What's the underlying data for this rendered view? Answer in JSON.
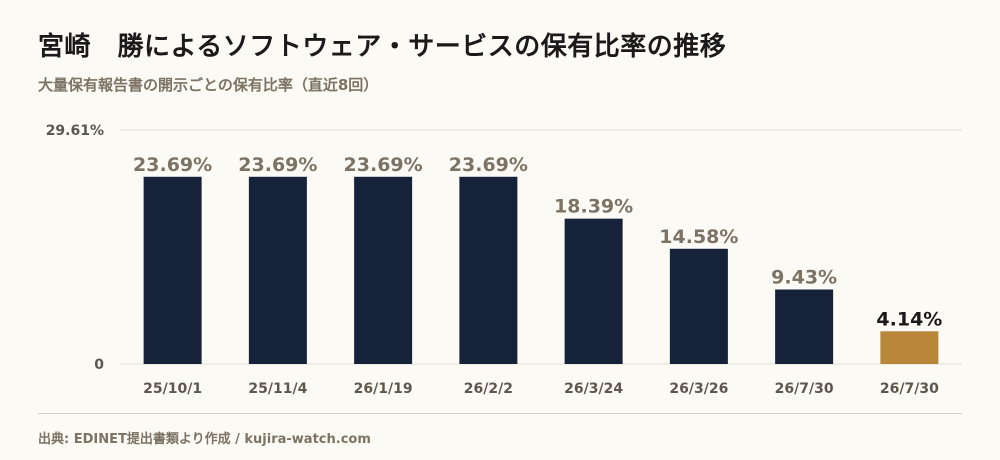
{
  "title": "宮崎　勝によるソフトウェア・サービスの保有比率の推移",
  "subtitle": "大量保有報告書の開示ごとの保有比率（直近8回）",
  "source": "出典: EDINET提出書類より作成 / kujira-watch.com",
  "colors": {
    "bar": "#16213a",
    "highlight": "#b9873a",
    "value_label": "#7c7364",
    "value_label_highlight": "#1a1a1a",
    "grid": "#e2ddd2",
    "tick_label": "#5d574d"
  },
  "chart_data": {
    "type": "bar",
    "categories": [
      "25/10/1",
      "25/11/4",
      "26/1/19",
      "26/2/2",
      "26/3/24",
      "26/3/26",
      "26/7/30",
      "26/7/30"
    ],
    "values": [
      23.69,
      23.69,
      23.69,
      23.69,
      18.39,
      14.58,
      9.43,
      4.14
    ],
    "value_labels": [
      "23.69%",
      "23.69%",
      "23.69%",
      "23.69%",
      "18.39%",
      "14.58%",
      "9.43%",
      "4.14%"
    ],
    "highlight_index": 7,
    "ylim": [
      0,
      29.61
    ],
    "y_tick_labels": [
      "29.61%",
      "0"
    ],
    "grid": true,
    "legend": "none"
  }
}
